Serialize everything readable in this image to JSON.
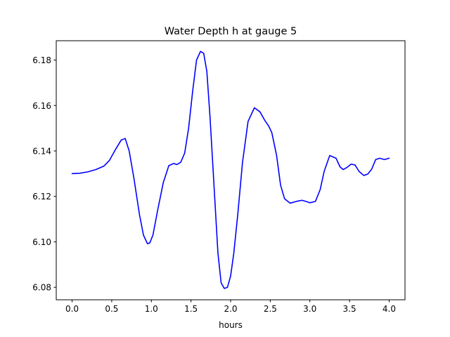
{
  "chart_data": {
    "type": "line",
    "title": "Water Depth h at gauge 5",
    "xlabel": "hours",
    "ylabel": "",
    "xlim": [
      -0.2,
      4.2
    ],
    "ylim": [
      6.0745,
      6.1885
    ],
    "xticks": [
      0.0,
      0.5,
      1.0,
      1.5,
      2.0,
      2.5,
      3.0,
      3.5,
      4.0
    ],
    "xtick_labels": [
      "0.0",
      "0.5",
      "1.0",
      "1.5",
      "2.0",
      "2.5",
      "3.0",
      "3.5",
      "4.0"
    ],
    "yticks": [
      6.08,
      6.1,
      6.12,
      6.14,
      6.16,
      6.18
    ],
    "ytick_labels": [
      "6.08",
      "6.10",
      "6.12",
      "6.14",
      "6.16",
      "6.18"
    ],
    "grid": false,
    "legend": "none",
    "series": [
      {
        "color": "#0000ff",
        "x": [
          0.0,
          0.1,
          0.2,
          0.3,
          0.4,
          0.47,
          0.55,
          0.62,
          0.67,
          0.72,
          0.78,
          0.85,
          0.9,
          0.95,
          0.98,
          1.02,
          1.08,
          1.15,
          1.22,
          1.28,
          1.32,
          1.37,
          1.42,
          1.47,
          1.52,
          1.57,
          1.62,
          1.66,
          1.7,
          1.74,
          1.79,
          1.84,
          1.88,
          1.92,
          1.96,
          2.0,
          2.04,
          2.09,
          2.15,
          2.22,
          2.3,
          2.37,
          2.43,
          2.48,
          2.52,
          2.58,
          2.63,
          2.68,
          2.75,
          2.83,
          2.9,
          2.95,
          3.0,
          3.07,
          3.13,
          3.18,
          3.25,
          3.33,
          3.38,
          3.42,
          3.47,
          3.52,
          3.57,
          3.62,
          3.68,
          3.73,
          3.78,
          3.83,
          3.88,
          3.94,
          4.0
        ],
        "y": [
          6.13,
          6.1302,
          6.1308,
          6.1318,
          6.1333,
          6.1358,
          6.1408,
          6.1448,
          6.1455,
          6.14,
          6.128,
          6.112,
          6.103,
          6.0992,
          6.0995,
          6.103,
          6.114,
          6.126,
          6.1335,
          6.1345,
          6.134,
          6.135,
          6.139,
          6.15,
          6.166,
          6.18,
          6.1838,
          6.183,
          6.175,
          6.155,
          6.125,
          6.095,
          6.082,
          6.0795,
          6.08,
          6.085,
          6.095,
          6.112,
          6.135,
          6.153,
          6.159,
          6.1572,
          6.1535,
          6.151,
          6.148,
          6.138,
          6.125,
          6.119,
          6.117,
          6.1178,
          6.1183,
          6.1178,
          6.1172,
          6.1178,
          6.123,
          6.131,
          6.138,
          6.1368,
          6.133,
          6.1318,
          6.1328,
          6.1342,
          6.1338,
          6.131,
          6.1292,
          6.1298,
          6.132,
          6.1362,
          6.1368,
          6.1362,
          6.1368
        ]
      }
    ]
  }
}
